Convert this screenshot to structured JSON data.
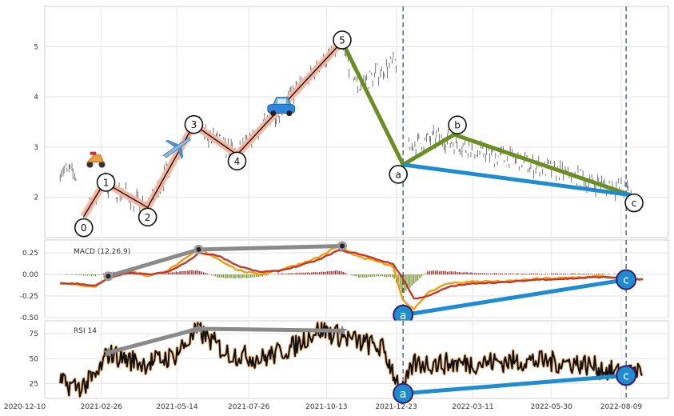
{
  "chart_data": {
    "type": "line",
    "x_ticks": [
      "2020-12-10",
      "2021-02-26",
      "2021-05-14",
      "2021-07-26",
      "2021-10-13",
      "2021-12-23",
      "2022-03-11",
      "2022-05-30",
      "2022-08-09"
    ],
    "price_panel": {
      "ylim": [
        1.2,
        5.8
      ],
      "y_ticks": [
        2,
        3,
        4,
        5
      ],
      "series": [],
      "wave_points": [
        {
          "label": "0",
          "date": "2021-02-08",
          "value": 1.62
        },
        {
          "label": "1",
          "date": "2021-03-01",
          "value": 2.3
        },
        {
          "label": "2",
          "date": "2021-04-14",
          "value": 1.8
        },
        {
          "label": "3",
          "date": "2021-05-31",
          "value": 3.45
        },
        {
          "label": "4",
          "date": "2021-07-14",
          "value": 2.85
        },
        {
          "label": "5",
          "date": "2021-10-29",
          "value": 5.1
        },
        {
          "label": "a",
          "date": "2021-12-30",
          "value": 2.65
        },
        {
          "label": "b",
          "date": "2022-02-20",
          "value": 3.25
        },
        {
          "label": "c",
          "date": "2022-08-18",
          "value": 2.05
        }
      ],
      "vlines": [
        "2021-12-30",
        "2022-08-14"
      ],
      "icons": [
        {
          "name": "scooter-icon",
          "date": "2021-02-20",
          "value": 2.75
        },
        {
          "name": "airplane-icon",
          "date": "2021-05-13",
          "value": 3.0
        },
        {
          "name": "car-icon",
          "date": "2021-08-28",
          "value": 3.8
        }
      ]
    },
    "macd_panel": {
      "title": "MACD (12,26,9)",
      "ylim": [
        -0.5,
        0.4
      ],
      "y_ticks": [
        0.25,
        0.0,
        -0.25,
        -0.5
      ],
      "y_tick_labels": [
        "0.25",
        "0.00",
        "-0.25",
        "-0.50"
      ],
      "line_points": [
        [
          "2021-01-15",
          -0.1
        ],
        [
          "2021-02-05",
          -0.12
        ],
        [
          "2021-02-20",
          -0.15
        ],
        [
          "2021-03-05",
          -0.02
        ],
        [
          "2021-03-25",
          0.05
        ],
        [
          "2021-04-15",
          -0.02
        ],
        [
          "2021-05-05",
          0.05
        ],
        [
          "2021-05-25",
          0.2
        ],
        [
          "2021-06-05",
          0.3
        ],
        [
          "2021-06-25",
          0.18
        ],
        [
          "2021-07-15",
          0.05
        ],
        [
          "2021-08-05",
          0.0
        ],
        [
          "2021-08-25",
          0.05
        ],
        [
          "2021-09-15",
          0.12
        ],
        [
          "2021-10-05",
          0.2
        ],
        [
          "2021-10-25",
          0.33
        ],
        [
          "2021-11-15",
          0.2
        ],
        [
          "2021-12-05",
          0.15
        ],
        [
          "2021-12-20",
          0.08
        ],
        [
          "2021-12-30",
          -0.3
        ],
        [
          "2022-01-10",
          -0.4
        ],
        [
          "2022-01-25",
          -0.2
        ],
        [
          "2022-02-15",
          -0.1
        ],
        [
          "2022-03-15",
          -0.08
        ],
        [
          "2022-04-15",
          -0.08
        ],
        [
          "2022-05-15",
          -0.05
        ],
        [
          "2022-06-15",
          -0.04
        ],
        [
          "2022-07-15",
          -0.02
        ],
        [
          "2022-08-15",
          -0.04
        ],
        [
          "2022-08-31",
          -0.06
        ]
      ],
      "signal_points": [
        [
          "2021-01-15",
          -0.1
        ],
        [
          "2021-02-05",
          -0.11
        ],
        [
          "2021-02-20",
          -0.13
        ],
        [
          "2021-03-05",
          -0.05
        ],
        [
          "2021-03-25",
          0.02
        ],
        [
          "2021-04-15",
          0.0
        ],
        [
          "2021-05-05",
          0.03
        ],
        [
          "2021-05-25",
          0.15
        ],
        [
          "2021-06-05",
          0.25
        ],
        [
          "2021-06-25",
          0.22
        ],
        [
          "2021-07-15",
          0.1
        ],
        [
          "2021-08-05",
          0.03
        ],
        [
          "2021-08-25",
          0.04
        ],
        [
          "2021-09-15",
          0.1
        ],
        [
          "2021-10-05",
          0.17
        ],
        [
          "2021-10-25",
          0.28
        ],
        [
          "2021-11-15",
          0.24
        ],
        [
          "2021-12-05",
          0.17
        ],
        [
          "2021-12-20",
          0.12
        ],
        [
          "2021-12-30",
          -0.05
        ],
        [
          "2022-01-10",
          -0.28
        ],
        [
          "2022-01-25",
          -0.25
        ],
        [
          "2022-02-15",
          -0.14
        ],
        [
          "2022-03-15",
          -0.1
        ],
        [
          "2022-04-15",
          -0.09
        ],
        [
          "2022-05-15",
          -0.06
        ],
        [
          "2022-06-15",
          -0.05
        ],
        [
          "2022-07-15",
          -0.03
        ],
        [
          "2022-08-15",
          -0.04
        ],
        [
          "2022-08-31",
          -0.06
        ]
      ],
      "marker_points": [
        [
          "2021-03-05",
          -0.02
        ],
        [
          "2021-06-05",
          0.29
        ],
        [
          "2021-10-29",
          0.33
        ]
      ],
      "trough_a": {
        "label": "a",
        "date": "2021-12-30",
        "value": -0.47
      },
      "trough_c": {
        "label": "c",
        "date": "2022-08-14",
        "value": -0.06
      }
    },
    "rsi_panel": {
      "title": "RSI 14",
      "ylim": [
        10,
        88
      ],
      "y_ticks": [
        75,
        50,
        25
      ],
      "marker_points": [
        [
          "2021-03-05",
          56
        ],
        [
          "2021-06-05",
          80
        ],
        [
          "2021-10-29",
          78
        ]
      ],
      "trough_a": {
        "label": "a",
        "date": "2021-12-30",
        "value": 15
      },
      "trough_c": {
        "label": "c",
        "date": "2022-08-14",
        "value": 33
      }
    }
  }
}
